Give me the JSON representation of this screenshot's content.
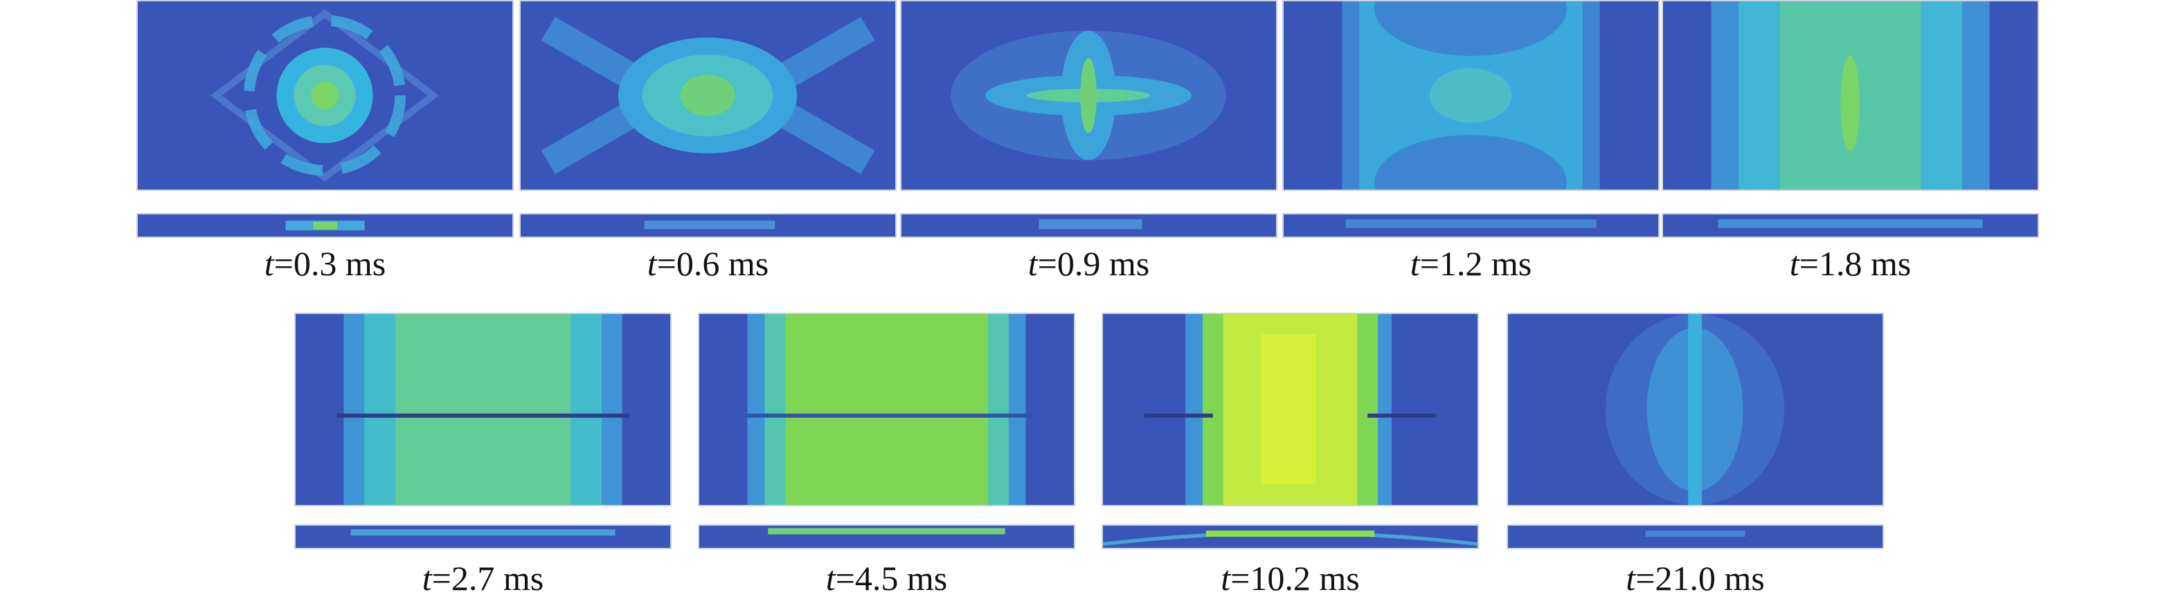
{
  "figure": {
    "colors": {
      "low": "#3a55b8",
      "mid": "#35b8e0",
      "high": "#8ae04a",
      "peak": "#d8f035",
      "frame": "#c9d3e4"
    },
    "panels": [
      {
        "id": "p1",
        "var": "t",
        "text": "=0.3 ms",
        "pattern": "diamond-rings",
        "peak_level": 0.7
      },
      {
        "id": "p2",
        "var": "t",
        "text": "=0.6 ms",
        "pattern": "cross-blob",
        "peak_level": 0.55
      },
      {
        "id": "p3",
        "var": "t",
        "text": "=0.9 ms",
        "pattern": "star",
        "peak_level": 0.5
      },
      {
        "id": "p4",
        "var": "t",
        "text": "=1.2 ms",
        "pattern": "band-noisy",
        "peak_level": 0.45
      },
      {
        "id": "p5",
        "var": "t",
        "text": "=1.8 ms",
        "pattern": "band-wide",
        "peak_level": 0.55
      },
      {
        "id": "p6",
        "var": "t",
        "text": "=2.7 ms",
        "pattern": "band-crack",
        "peak_level": 0.65
      },
      {
        "id": "p7",
        "var": "t",
        "text": "=4.5 ms",
        "pattern": "band-green",
        "peak_level": 0.8
      },
      {
        "id": "p8",
        "var": "t",
        "text": "=10.2 ms",
        "pattern": "band-yellow",
        "peak_level": 0.95
      },
      {
        "id": "p9",
        "var": "t",
        "text": "=21.0 ms",
        "pattern": "center-line",
        "peak_level": 0.35
      }
    ]
  }
}
